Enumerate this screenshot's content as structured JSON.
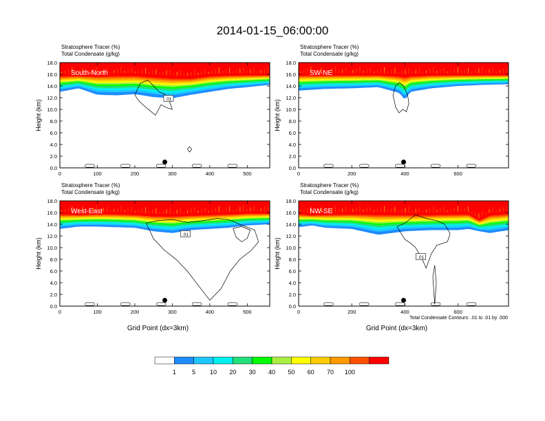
{
  "figure": {
    "title": "2014-01-15_06:00:00",
    "footnote": "Total Condensate Contours: .01 to .01 by .000"
  },
  "colorbar": {
    "labels": [
      "1",
      "5",
      "10",
      "20",
      "30",
      "40",
      "50",
      "60",
      "70",
      "100"
    ],
    "colors": [
      "#ffffff",
      "#1e8cff",
      "#1ec8ff",
      "#00f0f0",
      "#22e07a",
      "#00ff00",
      "#aaf040",
      "#ffff00",
      "#ffcc00",
      "#ff9900",
      "#ff5000",
      "#ff0000"
    ]
  },
  "chart_data": [
    {
      "type": "heatmap",
      "panel_label": "South-North",
      "title_line1": "Stratosphere Tracer   (%)",
      "title_line2": "Total Condensate   (g/kg)",
      "xlabel": "",
      "ylabel": "Height (km)",
      "xlim": [
        0,
        560
      ],
      "ylim": [
        0,
        18
      ],
      "xticks": [
        0,
        100,
        200,
        300,
        400,
        500
      ],
      "yticks": [
        0.0,
        2.0,
        4.0,
        6.0,
        8.0,
        10.0,
        12.0,
        14.0,
        16.0,
        18.0
      ],
      "ytick_labels": [
        "0.0",
        "2.0",
        "4.0",
        "6.0",
        "8.0",
        "10.0",
        "12.0",
        "14.0",
        "16.0",
        "18.0"
      ],
      "contour_label": ".01",
      "contour_label_pos": [
        290,
        11.7
      ],
      "location_dot": [
        280,
        1.0
      ],
      "tracer_profile": {
        "x": [
          0,
          50,
          100,
          150,
          200,
          250,
          300,
          350,
          400,
          450,
          500,
          560
        ],
        "top_100": [
          15.9,
          15.9,
          15.9,
          16.0,
          16.0,
          15.8,
          15.6,
          15.5,
          15.9,
          16.0,
          16.0,
          16.0
        ],
        "bottom_1": [
          13.0,
          13.6,
          12.5,
          12.4,
          12.6,
          12.1,
          11.9,
          12.5,
          13.0,
          13.5,
          13.8,
          14.2
        ]
      },
      "condensate_contours": [
        {
          "x": [
            200,
            215,
            235,
            250,
            265,
            280,
            290,
            300,
            285,
            270,
            255,
            240,
            225,
            210,
            200
          ],
          "y": [
            12.5,
            14.5,
            15.0,
            14.0,
            13.0,
            12.6,
            11.8,
            10.0,
            10.3,
            10.8,
            9.0,
            9.8,
            10.6,
            11.5,
            12.5
          ]
        },
        {
          "x": [
            340,
            346,
            352,
            346,
            340
          ],
          "y": [
            3.2,
            3.6,
            3.2,
            2.7,
            3.2
          ]
        }
      ]
    },
    {
      "type": "heatmap",
      "panel_label": "SW-NE",
      "title_line1": "Stratosphere Tracer   (%)",
      "title_line2": "Total Condensate   (g/kg)",
      "xlabel": "",
      "ylabel": "Height (km)",
      "xlim": [
        0,
        790
      ],
      "ylim": [
        0,
        18
      ],
      "xticks": [
        0,
        200,
        400,
        600
      ],
      "yticks": [
        0.0,
        2.0,
        4.0,
        6.0,
        8.0,
        10.0,
        12.0,
        14.0,
        16.0,
        18.0
      ],
      "ytick_labels": [
        "0.0",
        "2.0",
        "4.0",
        "6.0",
        "8.0",
        "10.0",
        "12.0",
        "14.0",
        "16.0",
        "18.0"
      ],
      "contour_label": "",
      "contour_label_pos": null,
      "location_dot": [
        395,
        1.0
      ],
      "tracer_profile": {
        "x": [
          0,
          100,
          200,
          300,
          380,
          400,
          420,
          500,
          600,
          700,
          790
        ],
        "top_100": [
          16.0,
          16.0,
          16.0,
          16.0,
          15.9,
          15.8,
          15.9,
          16.0,
          16.0,
          16.0,
          16.0
        ],
        "bottom_1": [
          13.2,
          13.5,
          13.6,
          13.8,
          12.8,
          11.6,
          13.0,
          13.6,
          14.0,
          14.2,
          14.3
        ]
      },
      "condensate_contours": [
        {
          "x": [
            355,
            365,
            380,
            395,
            410,
            415,
            405,
            392,
            378,
            365,
            355
          ],
          "y": [
            12.5,
            14.0,
            14.6,
            14.0,
            12.5,
            11.0,
            9.6,
            10.0,
            9.4,
            10.4,
            12.5
          ]
        }
      ]
    },
    {
      "type": "heatmap",
      "panel_label": "West-East",
      "title_line1": "Stratosphere Tracer   (%)",
      "title_line2": "Total Condensate   (g/kg)",
      "xlabel": "Grid Point (dx=3km)",
      "ylabel": "Height (km)",
      "xlim": [
        0,
        560
      ],
      "ylim": [
        0,
        18
      ],
      "xticks": [
        0,
        100,
        200,
        300,
        400,
        500
      ],
      "yticks": [
        0.0,
        2.0,
        4.0,
        6.0,
        8.0,
        10.0,
        12.0,
        14.0,
        16.0,
        18.0
      ],
      "ytick_labels": [
        "0.0",
        "2.0",
        "4.0",
        "6.0",
        "8.0",
        "10.0",
        "12.0",
        "14.0",
        "16.0",
        "18.0"
      ],
      "contour_label": ".01",
      "contour_label_pos": [
        335,
        12.2
      ],
      "location_dot": [
        280,
        1.0
      ],
      "tracer_profile": {
        "x": [
          0,
          50,
          100,
          150,
          200,
          250,
          300,
          350,
          400,
          450,
          500,
          560
        ],
        "top_100": [
          15.9,
          15.8,
          15.9,
          15.9,
          15.8,
          15.6,
          15.6,
          15.7,
          15.8,
          15.9,
          16.0,
          16.0
        ],
        "bottom_1": [
          13.2,
          13.6,
          13.6,
          13.5,
          13.4,
          12.8,
          12.5,
          13.0,
          13.2,
          13.4,
          13.8,
          14.0
        ]
      },
      "condensate_contours": [
        {
          "x": [
            230,
            260,
            300,
            340,
            380,
            420,
            450,
            480,
            520,
            530,
            510,
            480,
            455,
            430,
            400,
            370,
            340,
            310,
            280,
            250,
            230
          ],
          "y": [
            14.2,
            14.6,
            14.8,
            14.3,
            14.6,
            15.0,
            14.8,
            14.0,
            13.0,
            11.0,
            9.5,
            8.0,
            6.0,
            3.0,
            1.0,
            3.5,
            6.0,
            8.0,
            9.5,
            11.5,
            14.2
          ]
        },
        {
          "x": [
            462,
            485,
            508,
            500,
            485,
            470,
            462
          ],
          "y": [
            13.3,
            13.6,
            13.0,
            11.6,
            11.0,
            11.8,
            13.3
          ]
        }
      ]
    },
    {
      "type": "heatmap",
      "panel_label": "NW-SE",
      "title_line1": "Stratosphere Tracer   (%)",
      "title_line2": "Total Condensate   (g/kg)",
      "xlabel": "Grid Point (dx=3km)",
      "ylabel": "Height (km)",
      "xlim": [
        0,
        790
      ],
      "ylim": [
        0,
        18
      ],
      "xticks": [
        0,
        200,
        400,
        600
      ],
      "yticks": [
        0.0,
        2.0,
        4.0,
        6.0,
        8.0,
        10.0,
        12.0,
        14.0,
        16.0,
        18.0
      ],
      "ytick_labels": [
        "0.0",
        "2.0",
        "4.0",
        "6.0",
        "8.0",
        "10.0",
        "12.0",
        "14.0",
        "16.0",
        "18.0"
      ],
      "contour_label": ".01",
      "contour_label_pos": [
        460,
        8.3
      ],
      "location_dot": [
        395,
        1.0
      ],
      "tracer_profile": {
        "x": [
          0,
          50,
          100,
          200,
          300,
          400,
          500,
          600,
          640,
          680,
          720,
          790
        ],
        "top_100": [
          15.9,
          15.7,
          15.8,
          15.9,
          15.9,
          15.8,
          15.8,
          15.9,
          15.9,
          14.8,
          15.8,
          16.0
        ],
        "bottom_1": [
          13.5,
          13.8,
          13.4,
          13.2,
          12.2,
          12.8,
          13.0,
          13.0,
          13.2,
          12.8,
          12.5,
          13.0
        ]
      },
      "condensate_contours": [
        {
          "x": [
            370,
            400,
            440,
            480,
            520,
            550,
            570,
            560,
            520,
            500,
            480,
            460,
            440,
            420,
            400,
            385,
            370
          ],
          "y": [
            13.6,
            14.2,
            15.6,
            15.0,
            14.6,
            14.0,
            12.4,
            11.0,
            10.4,
            9.0,
            6.5,
            8.5,
            10.0,
            10.8,
            11.4,
            12.5,
            13.6
          ]
        },
        {
          "x": [
            505,
            512,
            518,
            512,
            505
          ],
          "y": [
            5.0,
            7.0,
            4.0,
            0.3,
            5.0
          ]
        }
      ]
    }
  ]
}
